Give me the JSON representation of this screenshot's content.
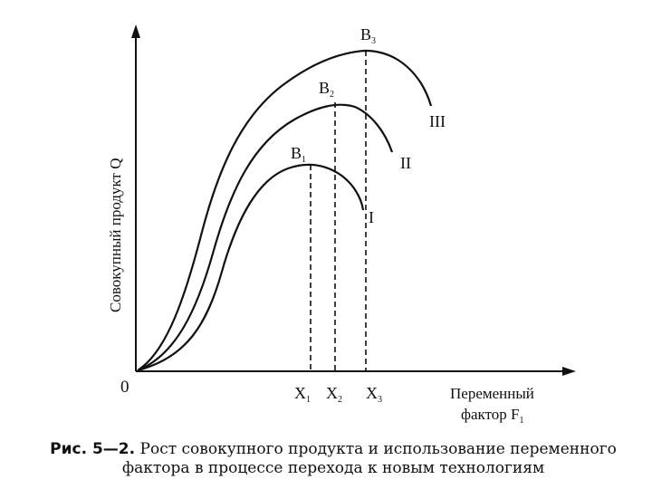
{
  "figure": {
    "y_axis_label": "Совокупный продукт Q",
    "x_axis_label_line1": "Переменный",
    "x_axis_label_line2": "фактор F",
    "x_axis_label_sub": "1",
    "origin_label": "0"
  },
  "curves": [
    {
      "roman": "I",
      "peak_label": "B",
      "peak_sub": "1",
      "x_label": "X",
      "x_sub": "1"
    },
    {
      "roman": "II",
      "peak_label": "B",
      "peak_sub": "2",
      "x_label": "X",
      "x_sub": "2"
    },
    {
      "roman": "III",
      "peak_label": "B",
      "peak_sub": "3",
      "x_label": "X",
      "x_sub": "3"
    }
  ],
  "caption": {
    "prefix": "Рис. 5—2.",
    "line1": "Рост совокупного продукта и использование переменного",
    "line2": "фактора в процессе перехода к новым технологиям"
  },
  "colors": {
    "ink": "#111111",
    "background": "#ffffff"
  }
}
